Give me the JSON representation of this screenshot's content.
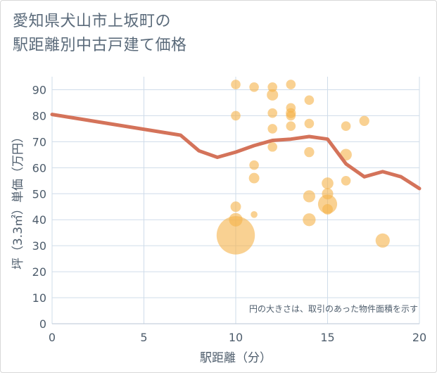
{
  "chart_data": {
    "type": "scatter",
    "title_lines": [
      "愛知県犬山市上坂町の",
      "駅距離別中古戸建て価格"
    ],
    "xlabel": "駅距離（分）",
    "ylabel": "坪（3.3㎡）単価（万円）",
    "xlim": [
      0,
      20
    ],
    "ylim": [
      0,
      95
    ],
    "xticks": [
      0,
      5,
      10,
      15,
      20
    ],
    "yticks": [
      0,
      10,
      20,
      30,
      40,
      50,
      60,
      70,
      80,
      90
    ],
    "grid": true,
    "annotation": "円の大きさは、取引のあった物件面積を示す",
    "colors": {
      "bubble": "#f5b24a",
      "line": "#d4735a",
      "grid": "#cfdcea",
      "text": "#4e5d6c"
    },
    "points": [
      {
        "x": 10,
        "y": 92,
        "size": 1
      },
      {
        "x": 10,
        "y": 80,
        "size": 1
      },
      {
        "x": 10,
        "y": 45,
        "size": 1.2
      },
      {
        "x": 10,
        "y": 40,
        "size": 2
      },
      {
        "x": 10,
        "y": 34,
        "size": 16
      },
      {
        "x": 11,
        "y": 91,
        "size": 1
      },
      {
        "x": 11,
        "y": 61,
        "size": 1
      },
      {
        "x": 11,
        "y": 56,
        "size": 1.2
      },
      {
        "x": 11,
        "y": 42,
        "size": 0.5
      },
      {
        "x": 12,
        "y": 91,
        "size": 1
      },
      {
        "x": 12,
        "y": 88,
        "size": 1.4
      },
      {
        "x": 12,
        "y": 81,
        "size": 1
      },
      {
        "x": 12,
        "y": 75,
        "size": 1
      },
      {
        "x": 12,
        "y": 68,
        "size": 1
      },
      {
        "x": 13,
        "y": 92,
        "size": 1
      },
      {
        "x": 13,
        "y": 83,
        "size": 1
      },
      {
        "x": 13,
        "y": 81,
        "size": 1.1
      },
      {
        "x": 13,
        "y": 80,
        "size": 1
      },
      {
        "x": 13,
        "y": 76,
        "size": 1
      },
      {
        "x": 14,
        "y": 86,
        "size": 1
      },
      {
        "x": 14,
        "y": 77,
        "size": 1
      },
      {
        "x": 14,
        "y": 66,
        "size": 1.1
      },
      {
        "x": 14,
        "y": 49,
        "size": 1.6
      },
      {
        "x": 14,
        "y": 40,
        "size": 1.8
      },
      {
        "x": 15,
        "y": 54,
        "size": 1.5
      },
      {
        "x": 15,
        "y": 50,
        "size": 1.4
      },
      {
        "x": 15,
        "y": 46,
        "size": 4
      },
      {
        "x": 15,
        "y": 44,
        "size": 1.2
      },
      {
        "x": 16,
        "y": 76,
        "size": 1
      },
      {
        "x": 16,
        "y": 65,
        "size": 1.5
      },
      {
        "x": 16,
        "y": 55,
        "size": 1
      },
      {
        "x": 17,
        "y": 78,
        "size": 1.1
      },
      {
        "x": 18,
        "y": 32,
        "size": 2.2
      }
    ],
    "trend_line": {
      "x": [
        0,
        7,
        8,
        9,
        10,
        11,
        12,
        13,
        14,
        15,
        16,
        17,
        18,
        19,
        20
      ],
      "y": [
        80.5,
        72.5,
        66.5,
        64,
        66,
        68.5,
        70.5,
        71,
        72,
        71,
        61.5,
        56.5,
        58.5,
        56.5,
        52
      ]
    }
  }
}
